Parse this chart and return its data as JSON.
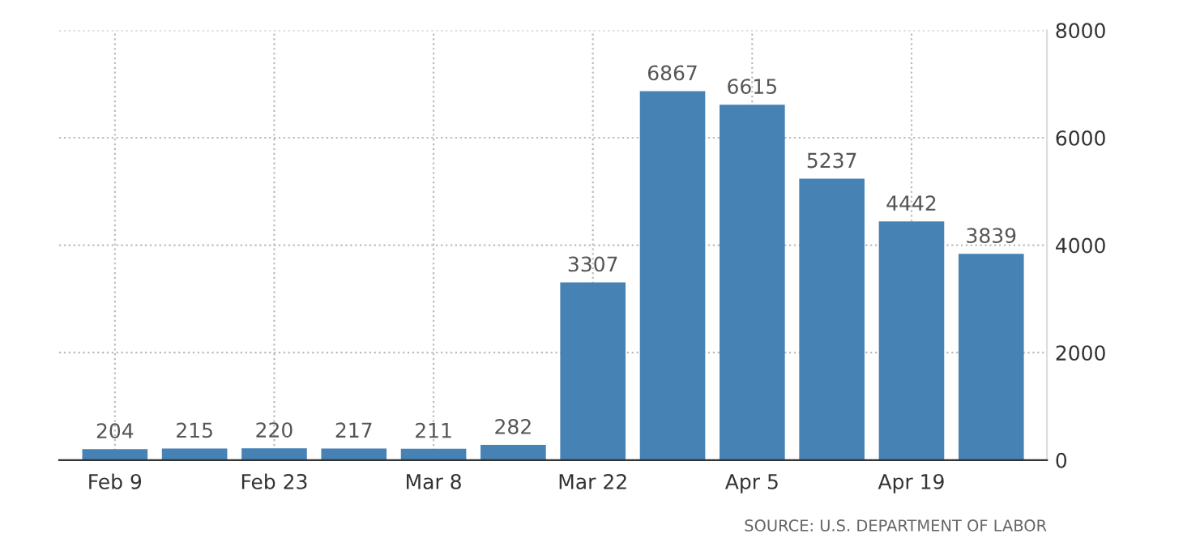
{
  "chart_data": {
    "type": "bar",
    "categories": [
      "Feb 9",
      null,
      "Feb 23",
      null,
      "Mar 8",
      null,
      "Mar 22",
      null,
      "Apr 5",
      null,
      "Apr 19",
      null
    ],
    "values": [
      204,
      215,
      220,
      217,
      211,
      282,
      3307,
      6867,
      6615,
      5237,
      4442,
      3839
    ],
    "color": "#4682b4",
    "ylim": [
      0,
      8000
    ],
    "yticks": [
      0,
      2000,
      4000,
      6000,
      8000
    ],
    "grid": true,
    "data_labels": true,
    "annotations": [
      "SOURCE: U.S. DEPARTMENT OF LABOR"
    ]
  }
}
